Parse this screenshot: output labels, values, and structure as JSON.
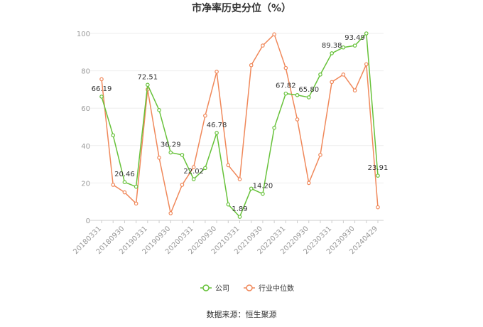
{
  "chart_data": {
    "type": "line",
    "title": "市净率历史分位（%）",
    "xlabel": "",
    "ylabel": "",
    "ylim": [
      0,
      100
    ],
    "yticks": [
      0,
      20,
      40,
      60,
      80,
      100
    ],
    "grid": true,
    "legend_position": "bottom",
    "x": [
      "20180331",
      "20180630",
      "20180930",
      "20181231",
      "20190331",
      "20190630",
      "20190930",
      "20191231",
      "20200331",
      "20200630",
      "20200930",
      "20201231",
      "20210331",
      "20210630",
      "20210930",
      "20211231",
      "20220331",
      "20220630",
      "20220930",
      "20221231",
      "20230331",
      "20230630",
      "20230930",
      "20231231",
      "20240429"
    ],
    "xtick_labels": [
      "20180331",
      "20180930",
      "20190331",
      "20190930",
      "20200331",
      "20200930",
      "20210331",
      "20210930",
      "20220331",
      "20220930",
      "20230331",
      "20230930",
      "20240429"
    ],
    "series": [
      {
        "name": "公司",
        "color": "#67c23a",
        "values": [
          66.19,
          45.5,
          20.46,
          18.0,
          72.51,
          59.0,
          36.29,
          35.0,
          22.02,
          28.0,
          46.78,
          8.5,
          1.89,
          17.0,
          14.2,
          49.5,
          67.82,
          67.0,
          65.8,
          78.0,
          89.38,
          92.5,
          93.49,
          100,
          23.91
        ],
        "data_labels": [
          {
            "index": 0,
            "text": "66.19"
          },
          {
            "index": 2,
            "text": "20.46"
          },
          {
            "index": 4,
            "text": "72.51"
          },
          {
            "index": 6,
            "text": "36.29"
          },
          {
            "index": 8,
            "text": "22.02"
          },
          {
            "index": 10,
            "text": "46.78"
          },
          {
            "index": 12,
            "text": "1.89"
          },
          {
            "index": 14,
            "text": "14.20"
          },
          {
            "index": 16,
            "text": "67.82"
          },
          {
            "index": 18,
            "text": "65.80"
          },
          {
            "index": 20,
            "text": "89.38"
          },
          {
            "index": 22,
            "text": "93.49"
          },
          {
            "index": 24,
            "text": "23.91"
          }
        ]
      },
      {
        "name": "行业中位数",
        "color": "#f0885a",
        "values": [
          75.5,
          19.0,
          15.0,
          9.0,
          70.0,
          33.5,
          3.8,
          19.0,
          28.5,
          56.0,
          79.5,
          29.5,
          22.0,
          83.0,
          93.5,
          99.5,
          81.5,
          54.0,
          20.0,
          35.0,
          74.0,
          78.0,
          69.5,
          83.5,
          7.0
        ]
      }
    ]
  },
  "source": "数据来源：恒生聚源"
}
